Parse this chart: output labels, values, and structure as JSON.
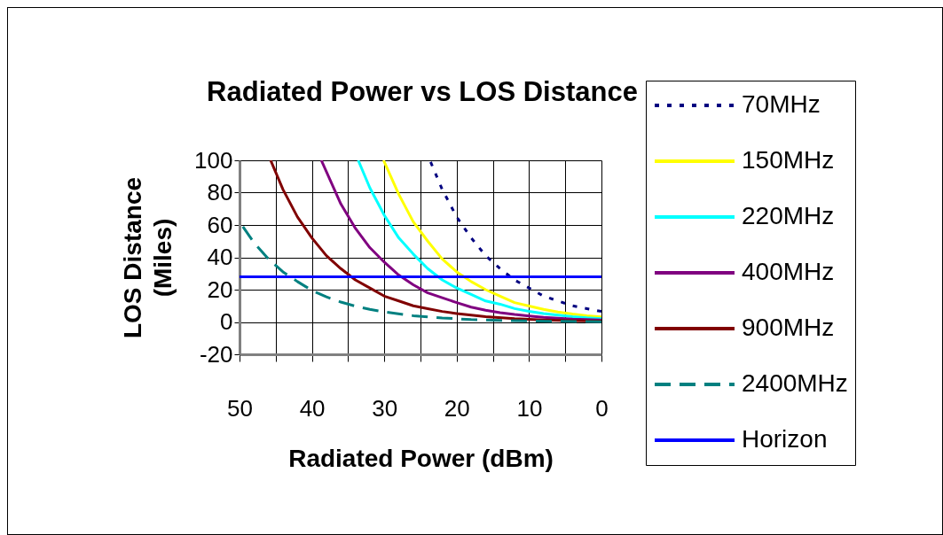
{
  "chart_data": {
    "type": "line",
    "title": "Radiated Power vs LOS Distance",
    "xlabel": "Radiated Power (dBm)",
    "ylabel": "LOS Distance (Miles)",
    "xlim": [
      50,
      0
    ],
    "xticks": [
      50,
      {
        "value": 45,
        "label": null
      },
      40,
      {
        "value": 35,
        "label": null
      },
      30,
      {
        "value": 25,
        "label": null
      },
      20,
      {
        "value": 15,
        "label": null
      },
      10,
      {
        "value": 5,
        "label": null
      },
      0
    ],
    "ylim": [
      -20,
      100
    ],
    "yticks": [
      -20,
      0,
      20,
      40,
      60,
      80,
      100
    ],
    "grid": true,
    "legend": "right",
    "series": [
      {
        "name": "70MHz",
        "color": "#000080",
        "line_style": "dotted",
        "x": [
          23.7,
          22,
          20,
          18,
          16,
          14,
          12,
          10,
          8,
          6,
          4,
          2,
          0
        ],
        "values": [
          100,
          82,
          65,
          52,
          41,
          33,
          26,
          21,
          16,
          13,
          10,
          8.2,
          6.5
        ]
      },
      {
        "name": "150MHz",
        "color": "#ffff00",
        "line_style": "solid",
        "x": [
          30.1,
          28,
          26,
          24,
          22,
          20,
          18,
          16,
          14,
          12,
          10,
          8,
          6,
          4,
          2,
          0
        ],
        "values": [
          100,
          79,
          62,
          50,
          39,
          31,
          25,
          20,
          16,
          12,
          9.9,
          7.8,
          6.2,
          4.9,
          3.9,
          3.1
        ]
      },
      {
        "name": "220MHz",
        "color": "#00ffff",
        "line_style": "solid",
        "x": [
          33.6,
          32,
          30,
          28,
          26,
          24,
          22,
          20,
          18,
          16,
          14,
          12,
          10,
          8,
          6,
          4,
          2,
          0
        ],
        "values": [
          100,
          83,
          66,
          52,
          42,
          33,
          26,
          21,
          17,
          13,
          11,
          8.3,
          6.6,
          5.2,
          4.2,
          3.3,
          2.6,
          2.1
        ]
      },
      {
        "name": "400MHz",
        "color": "#800080",
        "line_style": "solid",
        "x": [
          38.7,
          36,
          34,
          32,
          30,
          28,
          26,
          24,
          22,
          20,
          18,
          16,
          14,
          12,
          10,
          8,
          6,
          4,
          2,
          0
        ],
        "values": [
          100,
          73,
          58,
          46,
          37,
          29,
          23,
          18,
          15,
          12,
          9.2,
          7.3,
          5.8,
          4.6,
          3.7,
          2.9,
          2.3,
          1.8,
          1.5,
          1.2
        ]
      },
      {
        "name": "900MHz",
        "color": "#800000",
        "line_style": "solid",
        "x": [
          45.7,
          44,
          42,
          40,
          38,
          36,
          34,
          32,
          30,
          28,
          26,
          24,
          22,
          20,
          16,
          12,
          8,
          4,
          0
        ],
        "values": [
          100,
          82,
          65,
          52,
          41,
          33,
          26,
          21,
          16,
          13,
          10,
          8.2,
          6.5,
          5.2,
          3.3,
          2.1,
          1.3,
          0.8,
          0.5
        ]
      },
      {
        "name": "2400MHz",
        "color": "#008080",
        "line_style": "dashed",
        "x": [
          50,
          48,
          46,
          44,
          42,
          40,
          38,
          36,
          34,
          32,
          30,
          26,
          22,
          18,
          14,
          10,
          5,
          0
        ],
        "values": [
          62,
          49,
          39,
          31,
          25,
          19.5,
          15.5,
          12.3,
          9.8,
          7.8,
          6.2,
          3.9,
          2.5,
          1.5,
          1.0,
          0.6,
          0.4,
          0.2
        ]
      },
      {
        "name": "Horizon",
        "color": "#0000ff",
        "line_style": "solid",
        "x": [
          50,
          0
        ],
        "values": [
          28,
          28
        ]
      }
    ]
  }
}
